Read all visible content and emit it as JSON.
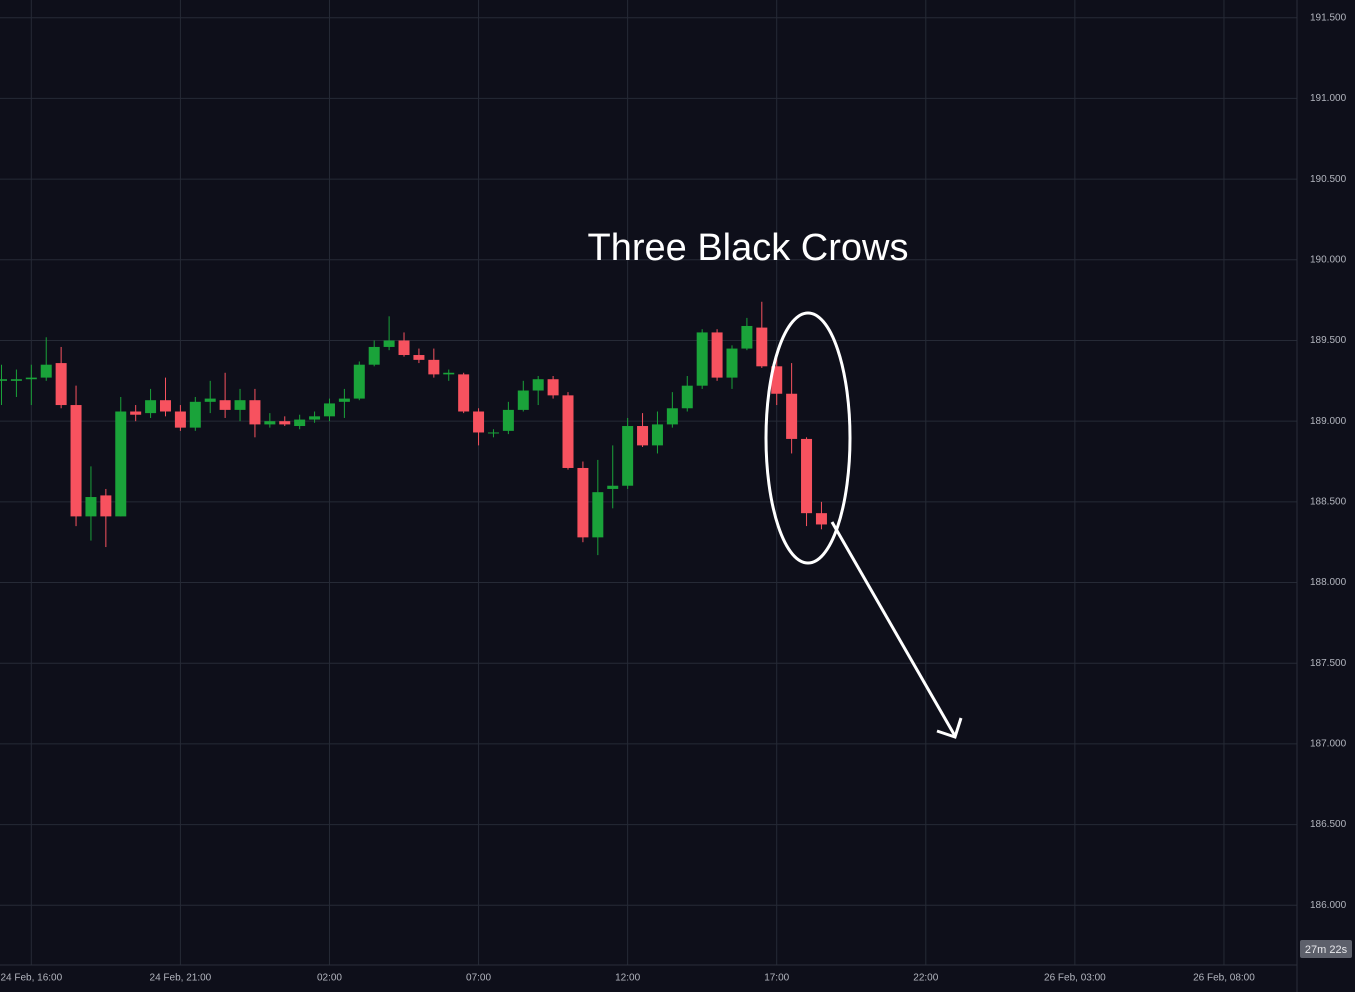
{
  "chart_data": {
    "type": "candlestick",
    "annotation": "Three Black Crows",
    "countdown": "27m 22s",
    "up_color": "#1aa33a",
    "down_color": "#f7525f",
    "grid": true,
    "ylim": [
      185.63,
      191.61
    ],
    "yticks": [
      {
        "value": 186.0,
        "label": "186.000"
      },
      {
        "value": 186.5,
        "label": "186.500"
      },
      {
        "value": 187.0,
        "label": "187.000"
      },
      {
        "value": 187.5,
        "label": "187.500"
      },
      {
        "value": 188.0,
        "label": "188.000"
      },
      {
        "value": 188.5,
        "label": "188.500"
      },
      {
        "value": 189.0,
        "label": "189.000"
      },
      {
        "value": 189.5,
        "label": "189.500"
      },
      {
        "value": 190.0,
        "label": "190.000"
      },
      {
        "value": 190.5,
        "label": "190.500"
      },
      {
        "value": 191.0,
        "label": "191.000"
      },
      {
        "value": 191.5,
        "label": "191.500"
      }
    ],
    "categories": [
      null,
      null,
      "24 Feb, 16:00",
      null,
      null,
      null,
      null,
      null,
      null,
      null,
      null,
      null,
      "24 Feb, 21:00",
      null,
      null,
      null,
      null,
      null,
      null,
      null,
      null,
      null,
      "02:00",
      null,
      null,
      null,
      null,
      null,
      null,
      null,
      null,
      null,
      "07:00",
      null,
      null,
      null,
      null,
      null,
      null,
      null,
      null,
      null,
      "12:00",
      null,
      null,
      null,
      null,
      null,
      null,
      null,
      null,
      null,
      "17:00",
      null,
      null,
      null,
      null,
      null,
      null,
      null,
      null,
      null,
      "22:00",
      null,
      null,
      null,
      null,
      null,
      null,
      null,
      null,
      null,
      "26 Feb, 03:00",
      null,
      null,
      null,
      null,
      null,
      null,
      null,
      null,
      null,
      "26 Feb, 08:00",
      null,
      null,
      null,
      null
    ],
    "open": [
      189.25,
      189.25,
      189.26,
      189.27,
      189.36,
      189.1,
      188.41,
      188.54,
      188.41,
      189.06,
      189.05,
      189.13,
      189.06,
      188.96,
      189.12,
      189.13,
      189.07,
      189.13,
      188.98,
      189.0,
      188.97,
      189.01,
      189.03,
      189.12,
      189.14,
      189.35,
      189.46,
      189.5,
      189.41,
      189.38,
      189.29,
      189.29,
      189.06,
      188.93,
      188.94,
      189.07,
      189.19,
      189.26,
      189.16,
      188.71,
      188.28,
      188.58,
      188.6,
      188.97,
      188.85,
      188.98,
      189.08,
      189.22,
      189.55,
      189.27,
      189.45,
      189.58,
      189.34,
      189.17,
      188.89,
      188.43,
      null,
      null,
      null,
      null,
      null,
      null,
      null,
      null,
      null,
      null,
      null,
      null,
      null,
      null,
      null,
      null,
      null,
      null,
      null,
      null,
      null,
      null,
      null,
      null,
      null,
      null,
      null,
      null,
      null,
      null,
      null
    ],
    "high": [
      189.35,
      189.32,
      189.35,
      189.52,
      189.46,
      189.22,
      188.72,
      188.58,
      189.15,
      189.1,
      189.2,
      189.27,
      189.1,
      189.15,
      189.25,
      189.3,
      189.2,
      189.2,
      189.05,
      189.03,
      189.04,
      189.06,
      189.14,
      189.2,
      189.37,
      189.5,
      189.65,
      189.55,
      189.45,
      189.45,
      189.32,
      189.3,
      189.08,
      188.95,
      189.12,
      189.25,
      189.28,
      189.28,
      189.18,
      188.75,
      188.76,
      188.85,
      189.02,
      189.05,
      189.06,
      189.18,
      189.28,
      189.57,
      189.57,
      189.47,
      189.64,
      189.74,
      189.4,
      189.36,
      188.9,
      188.5,
      null,
      null,
      null,
      null,
      null,
      null,
      null,
      null,
      null,
      null,
      null,
      null,
      null,
      null,
      null,
      null,
      null,
      null,
      null,
      null,
      null,
      null,
      null,
      null,
      null,
      null,
      null,
      null,
      null,
      null,
      null
    ],
    "low": [
      189.1,
      189.15,
      189.1,
      189.25,
      189.08,
      188.35,
      188.26,
      188.22,
      188.41,
      189.0,
      189.02,
      189.03,
      188.94,
      188.94,
      189.05,
      189.02,
      189.0,
      188.9,
      188.96,
      188.97,
      188.95,
      188.99,
      189.0,
      189.02,
      189.13,
      189.34,
      189.44,
      189.4,
      189.36,
      189.27,
      189.25,
      189.05,
      188.85,
      188.9,
      188.92,
      189.06,
      189.1,
      189.14,
      188.7,
      188.25,
      188.17,
      188.46,
      188.58,
      188.84,
      188.8,
      188.96,
      189.06,
      189.2,
      189.25,
      189.2,
      189.44,
      189.33,
      189.1,
      188.8,
      188.35,
      188.33,
      null,
      null,
      null,
      null,
      null,
      null,
      null,
      null,
      null,
      null,
      null,
      null,
      null,
      null,
      null,
      null,
      null,
      null,
      null,
      null,
      null,
      null,
      null,
      null,
      null,
      null,
      null,
      null,
      null,
      null,
      null
    ],
    "close": [
      189.26,
      189.26,
      189.27,
      189.35,
      189.1,
      188.41,
      188.53,
      188.41,
      189.06,
      189.04,
      189.13,
      189.06,
      188.96,
      189.12,
      189.14,
      189.07,
      189.13,
      188.98,
      189.0,
      188.98,
      189.01,
      189.03,
      189.11,
      189.14,
      189.35,
      189.46,
      189.5,
      189.41,
      189.38,
      189.29,
      189.3,
      189.06,
      188.93,
      188.93,
      189.07,
      189.19,
      189.26,
      189.16,
      188.71,
      188.28,
      188.56,
      188.6,
      188.97,
      188.85,
      188.98,
      189.08,
      189.22,
      189.55,
      189.27,
      189.45,
      189.59,
      189.34,
      189.17,
      188.89,
      188.43,
      188.36,
      null,
      null,
      null,
      null,
      null,
      null,
      null,
      null,
      null,
      null,
      null,
      null,
      null,
      null,
      null,
      null,
      null,
      null,
      null,
      null,
      null,
      null,
      null,
      null,
      null,
      null,
      null,
      null,
      null,
      null,
      null
    ]
  }
}
